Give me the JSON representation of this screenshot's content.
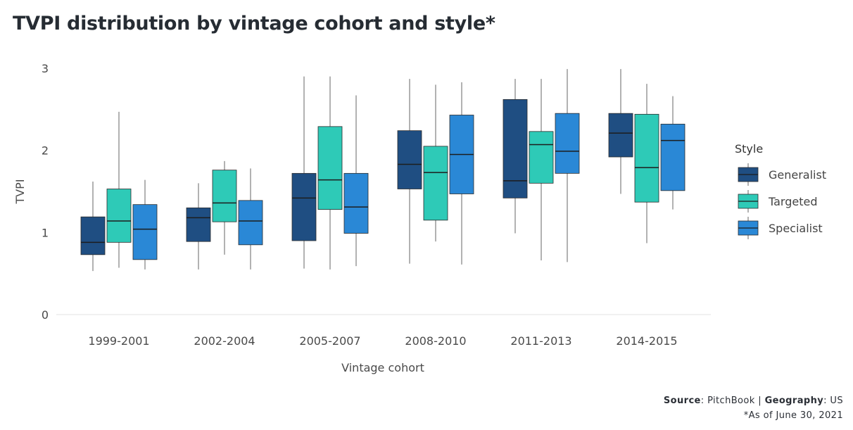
{
  "title": "TVPI distribution by vintage cohort and style*",
  "footer": {
    "source_label": "Source",
    "source_value": "PitchBook",
    "geo_label": "Geography",
    "geo_value": "US",
    "note": "*As of June 30, 2021"
  },
  "colors": {
    "Generalist": "#1f4e82",
    "Targeted": "#2ecab7",
    "Specialist": "#2a88d6"
  },
  "chart_data": {
    "type": "box",
    "title": "TVPI distribution by vintage cohort and style*",
    "xlabel": "Vintage cohort",
    "ylabel": "TVPI",
    "ylim": [
      0,
      3
    ],
    "yticks": [
      0,
      1,
      2,
      3
    ],
    "grid": false,
    "legend": {
      "title": "Style",
      "placement": "right"
    },
    "categories": [
      "1999-2001",
      "2002-2004",
      "2005-2007",
      "2008-2010",
      "2011-2013",
      "2014-2015"
    ],
    "series": [
      {
        "name": "Generalist",
        "boxes": [
          {
            "min": 0.53,
            "q1": 0.73,
            "median": 0.88,
            "q3": 1.19,
            "max": 1.62
          },
          {
            "min": 0.55,
            "q1": 0.89,
            "median": 1.18,
            "q3": 1.3,
            "max": 1.6
          },
          {
            "min": 0.56,
            "q1": 0.9,
            "median": 1.42,
            "q3": 1.72,
            "max": 2.9
          },
          {
            "min": 0.62,
            "q1": 1.53,
            "median": 1.83,
            "q3": 2.24,
            "max": 2.87
          },
          {
            "min": 0.99,
            "q1": 1.42,
            "median": 1.63,
            "q3": 2.62,
            "max": 2.87
          },
          {
            "min": 1.47,
            "q1": 1.92,
            "median": 2.21,
            "q3": 2.45,
            "max": 2.99
          }
        ]
      },
      {
        "name": "Targeted",
        "boxes": [
          {
            "min": 0.57,
            "q1": 0.88,
            "median": 1.14,
            "q3": 1.53,
            "max": 2.47
          },
          {
            "min": 0.73,
            "q1": 1.13,
            "median": 1.36,
            "q3": 1.76,
            "max": 1.87
          },
          {
            "min": 0.55,
            "q1": 1.28,
            "median": 1.64,
            "q3": 2.29,
            "max": 2.9
          },
          {
            "min": 0.89,
            "q1": 1.15,
            "median": 1.73,
            "q3": 2.05,
            "max": 2.8
          },
          {
            "min": 0.66,
            "q1": 1.6,
            "median": 2.07,
            "q3": 2.23,
            "max": 2.87
          },
          {
            "min": 0.87,
            "q1": 1.37,
            "median": 1.79,
            "q3": 2.44,
            "max": 2.81
          }
        ]
      },
      {
        "name": "Specialist",
        "boxes": [
          {
            "min": 0.55,
            "q1": 0.67,
            "median": 1.04,
            "q3": 1.34,
            "max": 1.64
          },
          {
            "min": 0.55,
            "q1": 0.85,
            "median": 1.14,
            "q3": 1.39,
            "max": 1.78
          },
          {
            "min": 0.59,
            "q1": 0.99,
            "median": 1.31,
            "q3": 1.72,
            "max": 2.67
          },
          {
            "min": 0.61,
            "q1": 1.47,
            "median": 1.95,
            "q3": 2.43,
            "max": 2.83
          },
          {
            "min": 0.64,
            "q1": 1.72,
            "median": 1.99,
            "q3": 2.45,
            "max": 2.99
          },
          {
            "min": 1.28,
            "q1": 1.51,
            "median": 2.12,
            "q3": 2.32,
            "max": 2.66
          }
        ]
      }
    ]
  }
}
